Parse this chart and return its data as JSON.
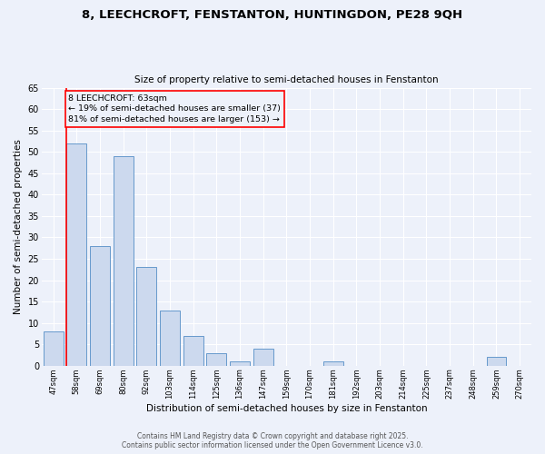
{
  "title1": "8, LEECHCROFT, FENSTANTON, HUNTINGDON, PE28 9QH",
  "title2": "Size of property relative to semi-detached houses in Fenstanton",
  "xlabel": "Distribution of semi-detached houses by size in Fenstanton",
  "ylabel": "Number of semi-detached properties",
  "categories": [
    "47sqm",
    "58sqm",
    "69sqm",
    "80sqm",
    "92sqm",
    "103sqm",
    "114sqm",
    "125sqm",
    "136sqm",
    "147sqm",
    "159sqm",
    "170sqm",
    "181sqm",
    "192sqm",
    "203sqm",
    "214sqm",
    "225sqm",
    "237sqm",
    "248sqm",
    "259sqm",
    "270sqm"
  ],
  "values": [
    8,
    52,
    28,
    49,
    23,
    13,
    7,
    3,
    1,
    4,
    0,
    0,
    1,
    0,
    0,
    0,
    0,
    0,
    0,
    2,
    0
  ],
  "bar_color": "#ccd9ee",
  "bar_edge_color": "#6699cc",
  "red_line_bar_index": 1,
  "annotation_title": "8 LEECHCROFT: 63sqm",
  "annotation_line1": "← 19% of semi-detached houses are smaller (37)",
  "annotation_line2": "81% of semi-detached houses are larger (153) →",
  "ylim": [
    0,
    65
  ],
  "yticks": [
    0,
    5,
    10,
    15,
    20,
    25,
    30,
    35,
    40,
    45,
    50,
    55,
    60,
    65
  ],
  "bg_color": "#edf1fa",
  "grid_color": "#ffffff",
  "footer1": "Contains HM Land Registry data © Crown copyright and database right 2025.",
  "footer2": "Contains public sector information licensed under the Open Government Licence v3.0."
}
